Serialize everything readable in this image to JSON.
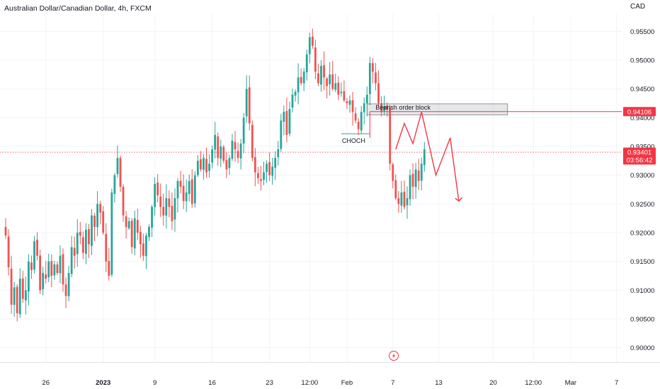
{
  "header": {
    "title": "Australian Dollar/Canadian Dollar, 4h, FXCM",
    "currency": "CAD"
  },
  "colors": {
    "up": "#26a69a",
    "down": "#ef5350",
    "drawing": "#f23645",
    "grid": "#f0f3fa",
    "text": "#131722"
  },
  "chart_data": {
    "type": "candlestick",
    "ylim": [
      0.8975,
      0.958
    ],
    "y_ticks": [
      "0.95500",
      "0.95000",
      "0.94500",
      "0.94000",
      "0.93500",
      "0.93000",
      "0.92500",
      "0.92000",
      "0.91500",
      "0.91000",
      "0.90500",
      "0.90000"
    ],
    "y_tick_values": [
      0.955,
      0.95,
      0.945,
      0.94,
      0.935,
      0.93,
      0.925,
      0.92,
      0.915,
      0.91,
      0.905,
      0.9
    ],
    "x_ticks": [
      {
        "label": "26",
        "index": 14,
        "bold": false
      },
      {
        "label": "2023",
        "index": 34,
        "bold": true
      },
      {
        "label": "9",
        "index": 52,
        "bold": false
      },
      {
        "label": "16",
        "index": 72,
        "bold": false
      },
      {
        "label": "23",
        "index": 92,
        "bold": false
      },
      {
        "label": "12:00",
        "index": 106,
        "bold": false
      },
      {
        "label": "Feb",
        "index": 119,
        "bold": false
      },
      {
        "label": "7",
        "index": 135,
        "bold": false
      },
      {
        "label": "13",
        "index": 151,
        "bold": false
      },
      {
        "label": "20",
        "index": 170,
        "bold": false
      },
      {
        "label": "12:00",
        "index": 184,
        "bold": false
      },
      {
        "label": "Mar",
        "index": 197,
        "bold": false
      },
      {
        "label": "7",
        "index": 213,
        "bold": false
      }
    ],
    "close_path": [
      0.9195,
      0.914,
      0.9075,
      0.9105,
      0.906,
      0.912,
      0.9085,
      0.91,
      0.915,
      0.9135,
      0.9185,
      0.916,
      0.91,
      0.913,
      0.912,
      0.915,
      0.9125,
      0.9145,
      0.913,
      0.916,
      0.911,
      0.909,
      0.913,
      0.9175,
      0.916,
      0.92,
      0.9195,
      0.9165,
      0.9205,
      0.918,
      0.923,
      0.921,
      0.925,
      0.9235,
      0.92,
      0.915,
      0.9125,
      0.927,
      0.93,
      0.933,
      0.928,
      0.923,
      0.921,
      0.922,
      0.9175,
      0.9225,
      0.92,
      0.918,
      0.916,
      0.9195,
      0.921,
      0.9245,
      0.9285,
      0.9265,
      0.9245,
      0.923,
      0.926,
      0.9245,
      0.922,
      0.926,
      0.929,
      0.928,
      0.9255,
      0.927,
      0.929,
      0.925,
      0.93,
      0.9325,
      0.931,
      0.933,
      0.9305,
      0.932,
      0.9345,
      0.937,
      0.933,
      0.935,
      0.9325,
      0.931,
      0.933,
      0.936,
      0.9345,
      0.933,
      0.9355,
      0.94,
      0.945,
      0.939,
      0.933,
      0.9305,
      0.9295,
      0.929,
      0.9305,
      0.932,
      0.93,
      0.9315,
      0.933,
      0.9345,
      0.9395,
      0.941,
      0.937,
      0.9415,
      0.944,
      0.9445,
      0.947,
      0.946,
      0.948,
      0.951,
      0.954,
      0.9525,
      0.948,
      0.946,
      0.949,
      0.947,
      0.9455,
      0.9475,
      0.945,
      0.946,
      0.944,
      0.9445,
      0.943,
      0.9425,
      0.943,
      0.941,
      0.9395,
      0.938,
      0.941,
      0.9425,
      0.944,
      0.9495,
      0.948,
      0.946,
      0.9425,
      0.941,
      0.942,
      0.9415,
      0.932,
      0.929,
      0.926,
      0.925,
      0.927,
      0.9245,
      0.926,
      0.93,
      0.928,
      0.931,
      0.929,
      0.932,
      0.9345
    ],
    "series": [
      {
        "label": "Bearish order block"
      },
      {
        "label": "CHOCH"
      }
    ],
    "order_block": {
      "x0": 126,
      "x1": 175,
      "y0": 0.9424,
      "y1": 0.9405
    },
    "choch_level": {
      "x0": 117,
      "x1": 127,
      "y": 0.9372
    },
    "horizontal_line": {
      "x0": 127,
      "y": 0.94106
    },
    "projection": [
      [
        136,
        0.9345
      ],
      [
        139,
        0.939
      ],
      [
        142,
        0.9355
      ],
      [
        145,
        0.941
      ],
      [
        150,
        0.93
      ],
      [
        155,
        0.9365
      ],
      [
        158,
        0.9255
      ]
    ],
    "price_tags": [
      {
        "value": 0.94106,
        "text": "0.94106"
      },
      {
        "value": 0.93401,
        "text": "0.93401",
        "sub": "03:56:42"
      }
    ],
    "current_price": 0.93401
  }
}
